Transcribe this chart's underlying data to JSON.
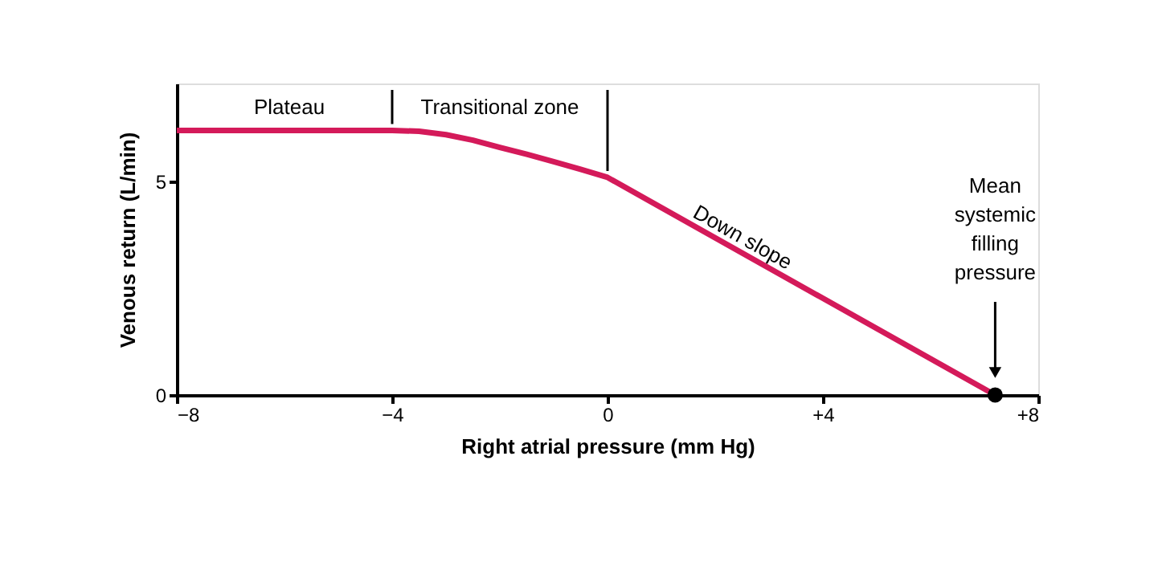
{
  "chart_data": {
    "type": "line",
    "xlabel": "Right atrial pressure (mm Hg)",
    "ylabel": "Venous return (L/min)",
    "xlim": [
      -8,
      8
    ],
    "ylim": [
      0,
      7.3
    ],
    "xticks": [
      {
        "value": -8,
        "label": "−8"
      },
      {
        "value": -4,
        "label": "−4"
      },
      0,
      {
        "value": 4,
        "label": "+4"
      },
      {
        "value": 8,
        "label": "+8"
      }
    ],
    "yticks": [
      0,
      5
    ],
    "grid": false,
    "line_style": "solid",
    "marker": "none",
    "series": [
      {
        "color": "#d41a5a",
        "x": [
          -8,
          -4,
          -3.5,
          -3,
          -2.5,
          -2,
          -1.5,
          -1,
          -0.5,
          0,
          7.2
        ],
        "values": [
          6.2,
          6.2,
          6.18,
          6.1,
          5.97,
          5.8,
          5.64,
          5.47,
          5.29,
          5.1,
          0
        ]
      },
      {
        "type": "scatter",
        "color": "#000000",
        "marker": "circle",
        "x": [
          7.2
        ],
        "values": [
          0
        ]
      }
    ],
    "ref_lines": [
      {
        "axis": "x",
        "value": -4,
        "label": null,
        "color": "#000000"
      },
      {
        "axis": "x",
        "value": 0,
        "label": null,
        "color": "#000000"
      }
    ],
    "annotations": [
      "Plateau",
      "Transitional zone",
      "Down slope",
      "Mean systemic filling pressure"
    ]
  }
}
